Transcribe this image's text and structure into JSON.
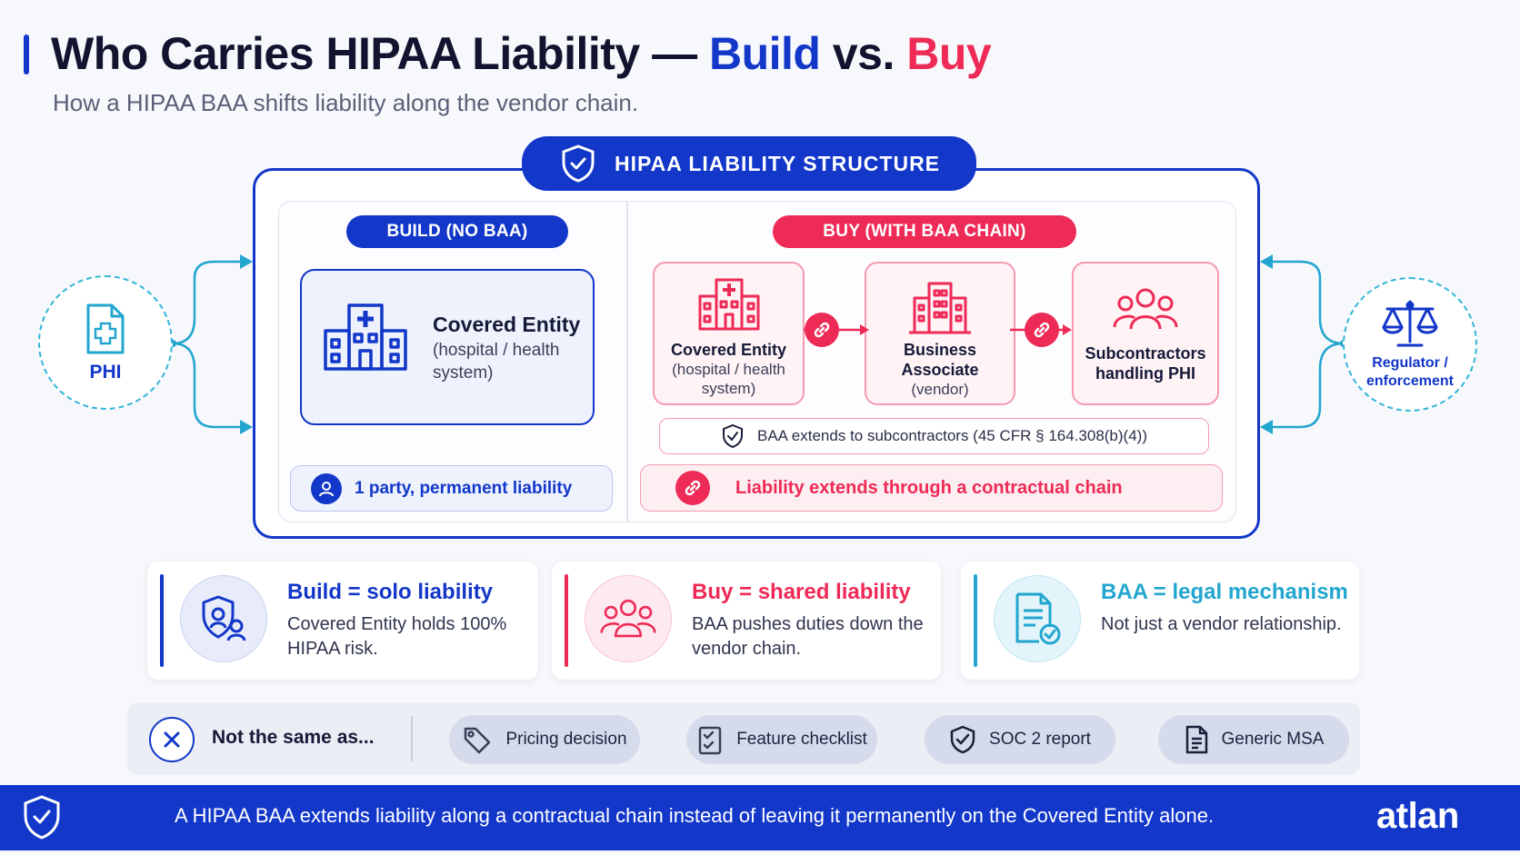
{
  "header": {
    "title_prefix": "Who Carries HIPAA Liability — ",
    "title_build": "Build",
    "title_vs": " vs. ",
    "title_buy": "Buy",
    "subtitle": "How a HIPAA BAA shifts liability along the vendor chain."
  },
  "structure": {
    "tab_label": "HIPAA  LIABILITY STRUCTURE",
    "build": {
      "pill": "BUILD (NO BAA)",
      "entity_title": "Covered Entity",
      "entity_sub": "(hospital / health system)",
      "party_label": "1 party, permanent liability"
    },
    "buy": {
      "pill": "BUY (WITH BAA CHAIN)",
      "chain": [
        {
          "title": "Covered Entity",
          "sub": "(hospital / health system)",
          "icon": "hospital-icon"
        },
        {
          "title": "Business Associate",
          "sub": "(vendor)",
          "icon": "building-icon"
        },
        {
          "title": "Subcontractors handling PHI",
          "sub": "",
          "icon": "group-icon"
        }
      ],
      "baa_extends": "BAA extends to subcontractors (45 CFR § 164.308(b)(4))",
      "chain_label": "Liability extends through a contractual chain"
    }
  },
  "side": {
    "left_label": "PHI",
    "right_label": "Regulator / enforcement"
  },
  "summary": [
    {
      "title": "Build = solo liability",
      "desc": "Covered Entity holds 100% HIPAA risk.",
      "color": "#1237c9",
      "icon": "shield-person-icon"
    },
    {
      "title": "Buy = shared liability",
      "desc": "BAA pushes duties down the vendor chain.",
      "color": "#ee2a56",
      "icon": "group-icon"
    },
    {
      "title": "BAA = legal mechanism",
      "desc": "Not just a vendor relationship.",
      "color": "#22a6cf",
      "icon": "document-check-icon"
    }
  ],
  "not_same": {
    "label": "Not the same as...",
    "chips": [
      {
        "label": "Pricing decision",
        "icon": "tag-icon"
      },
      {
        "label": "Feature checklist",
        "icon": "checklist-icon"
      },
      {
        "label": "SOC 2 report",
        "icon": "shield-check-icon"
      },
      {
        "label": "Generic MSA",
        "icon": "document-icon"
      }
    ]
  },
  "footer": {
    "text": "A HIPAA BAA extends liability along a contractual chain instead of leaving it permanently on the Covered Entity alone.",
    "brand": "atlan"
  },
  "colors": {
    "blue": "#1237c9",
    "red": "#ee2a56",
    "teal": "#22a6cf"
  }
}
